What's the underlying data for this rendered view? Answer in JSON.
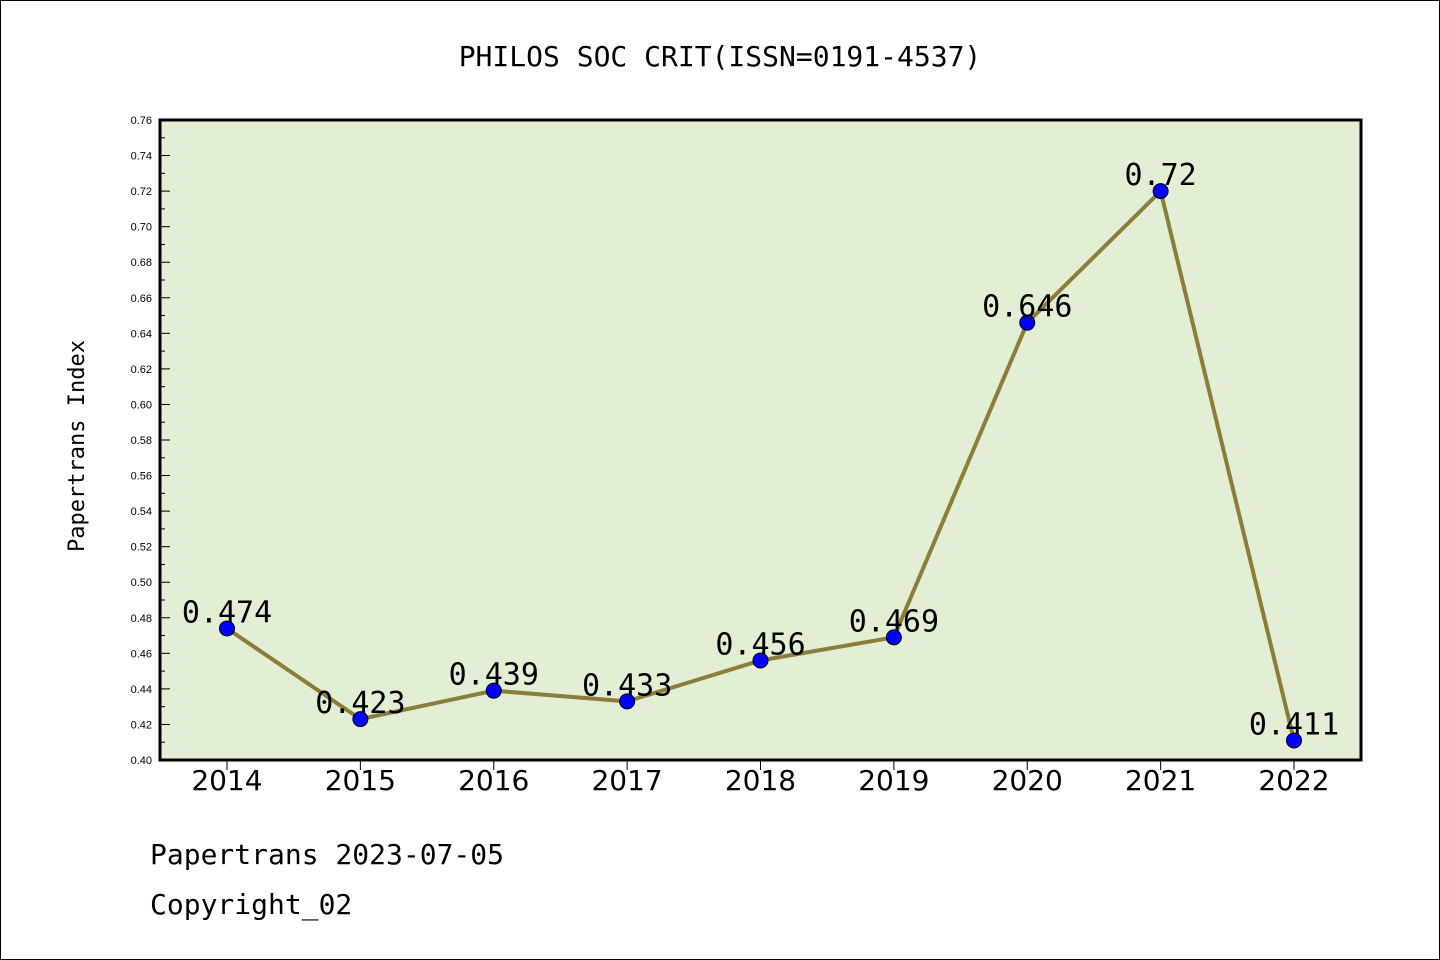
{
  "chart_data": {
    "type": "line",
    "title": "PHILOS SOC CRIT(ISSN=0191-4537)",
    "ylabel": "Papertrans Index",
    "xlabel": "",
    "categories": [
      "2014",
      "2015",
      "2016",
      "2017",
      "2018",
      "2019",
      "2020",
      "2021",
      "2022"
    ],
    "values": [
      0.474,
      0.423,
      0.439,
      0.433,
      0.456,
      0.469,
      0.646,
      0.72,
      0.411
    ],
    "data_labels": [
      "0.474",
      "0.423",
      "0.439",
      "0.433",
      "0.456",
      "0.469",
      "0.646",
      "0.72",
      "0.411"
    ],
    "ylim": [
      0.4,
      0.76
    ],
    "yticks": [
      "0.40",
      "0.42",
      "0.44",
      "0.46",
      "0.48",
      "0.50",
      "0.52",
      "0.54",
      "0.56",
      "0.58",
      "0.60",
      "0.62",
      "0.64",
      "0.66",
      "0.68",
      "0.70",
      "0.72",
      "0.74",
      "0.76"
    ],
    "grid": false,
    "colors": {
      "plot_background": "#e2efd5",
      "line": "#8b7d3a",
      "marker": "#0000ff"
    }
  },
  "footer": {
    "line1": "Papertrans 2023-07-05",
    "line2": "Copyright_02"
  }
}
